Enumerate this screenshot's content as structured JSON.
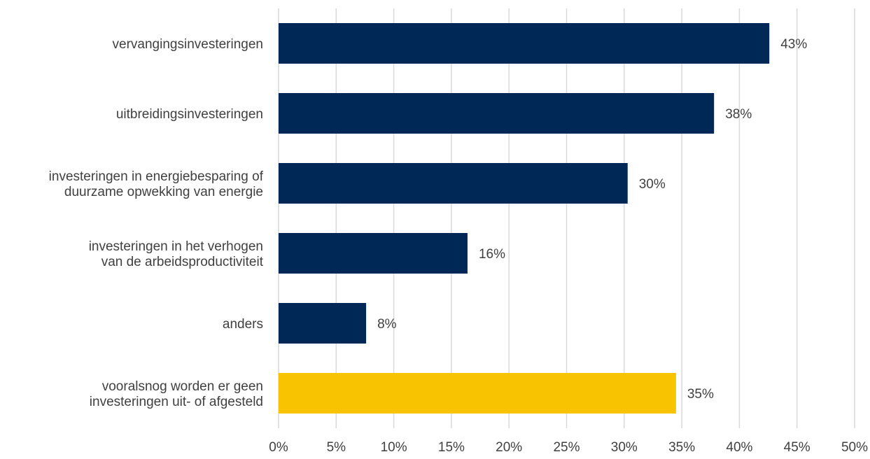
{
  "chart_data": {
    "type": "bar",
    "orientation": "horizontal",
    "categories": [
      [
        "vervangingsinvesteringen"
      ],
      [
        "uitbreidingsinvesteringen"
      ],
      [
        "investeringen in energiebesparing of",
        "duurzame opwekking van energie"
      ],
      [
        "investeringen in het verhogen",
        "van de arbeidsproductiviteit"
      ],
      [
        "anders"
      ],
      [
        "vooralsnog worden er geen",
        "investeringen uit- of afgesteld"
      ]
    ],
    "values": [
      42.6,
      37.8,
      30.3,
      16.4,
      7.6,
      34.5
    ],
    "value_labels": [
      "43%",
      "38%",
      "30%",
      "16%",
      "8%",
      "35%"
    ],
    "bar_colors": [
      "#002856",
      "#002856",
      "#002856",
      "#002856",
      "#002856",
      "#F8C300"
    ],
    "xlim": [
      0,
      50
    ],
    "xticks": [
      0,
      5,
      10,
      15,
      20,
      25,
      30,
      35,
      40,
      45,
      50
    ],
    "xtick_labels": [
      "0%",
      "5%",
      "10%",
      "15%",
      "20%",
      "25%",
      "30%",
      "35%",
      "40%",
      "45%",
      "50%"
    ],
    "grid": "vertical",
    "legend": "none",
    "title": "",
    "xlabel": "",
    "ylabel": ""
  }
}
